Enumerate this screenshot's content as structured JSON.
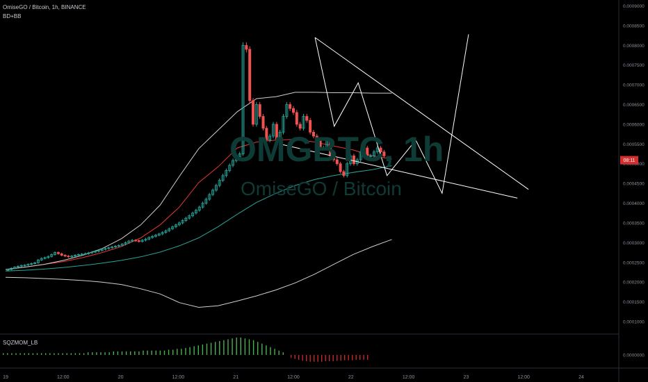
{
  "header": {
    "symbol_line": "OmiseGO / Bitcoin, 1h, BINANCE",
    "indicator_label": "BD+BB"
  },
  "watermark": {
    "ticker": "OMGBTC, 1h",
    "pair": "OmiseGO / Bitcoin"
  },
  "sub_pane": {
    "label": "SQZMOM_LB",
    "zero_label": "0.0000000"
  },
  "price_badge": "08:11",
  "colors": {
    "background": "#000000",
    "up_candle": "#26a69a",
    "down_candle": "#ef5350",
    "ema": "#e53935",
    "ma": "#26a69a",
    "bands": "#d0d0d0",
    "drawing": "#ffffff",
    "mom_pos": "#4caf50",
    "mom_neg": "#c62828",
    "badge": "#d32f2f"
  },
  "chart_data": {
    "type": "candlestick",
    "title": "OmiseGO / Bitcoin, 1h, BINANCE",
    "y_axis": {
      "ylim": [
        7e-05,
        0.000915
      ],
      "tick_labels": [
        "0.0009000",
        "0.0008500",
        "0.0008000",
        "0.0007500",
        "0.0007000",
        "0.0006500",
        "0.0006000",
        "0.0005500",
        "0.0005000",
        "0.0004500",
        "0.0004000",
        "0.0003500",
        "0.0003000",
        "0.0002500",
        "0.0002000",
        "0.0001500",
        "0.0001000"
      ],
      "tick_values": [
        0.0009,
        0.00085,
        0.0008,
        0.00075,
        0.0007,
        0.00065,
        0.0006,
        0.00055,
        0.0005,
        0.00045,
        0.0004,
        0.00035,
        0.0003,
        0.00025,
        0.0002,
        0.00015,
        0.0001
      ]
    },
    "x_axis": {
      "tick_labels": [
        "19",
        "12:00",
        "20",
        "12:00",
        "21",
        "12:00",
        "22",
        "12:00",
        "23",
        "12:00",
        "24"
      ],
      "tick_hours": [
        0,
        12,
        24,
        36,
        48,
        60,
        72,
        84,
        96,
        108,
        120
      ]
    },
    "candles_close": [
      0.000232,
      0.000235,
      0.000238,
      0.00024,
      0.000242,
      0.000243,
      0.000245,
      0.000247,
      0.000249,
      0.000256,
      0.00026,
      0.000262,
      0.000265,
      0.00027,
      0.000275,
      0.000272,
      0.000268,
      0.000266,
      0.000264,
      0.000266,
      0.000268,
      0.00027,
      0.000271,
      0.000272,
      0.000274,
      0.000276,
      0.000278,
      0.00028,
      0.000283,
      0.000285,
      0.000287,
      0.000289,
      0.000291,
      0.000293,
      0.000296,
      0.0003,
      0.000304,
      0.000306,
      0.000305,
      0.000303,
      0.000306,
      0.000309,
      0.000313,
      0.000316,
      0.000319,
      0.000322,
      0.000326,
      0.00033,
      0.000335,
      0.00034,
      0.000345,
      0.00035,
      0.000356,
      0.000362,
      0.000368,
      0.000375,
      0.000382,
      0.00039,
      0.0004,
      0.00041,
      0.000422,
      0.000433,
      0.000445,
      0.000458,
      0.00047,
      0.000483,
      0.000496,
      0.000508,
      0.000518,
      0.000525,
      0.0008,
      0.00079,
      0.00066,
      0.0006,
      0.00065,
      0.00062,
      0.00059,
      0.00056,
      0.00057,
      0.0006,
      0.00056,
      0.00058,
      0.00062,
      0.00065,
      0.00064,
      0.00063,
      0.0006,
      0.00059,
      0.00062,
      0.00061,
      0.00058,
      0.00057,
      0.00056,
      0.00054,
      0.00054,
      0.00056,
      0.00052,
      0.00051,
      0.0005,
      0.00048,
      0.00047,
      0.0005,
      0.00052,
      0.0005,
      0.00051,
      0.00053,
      0.00054,
      0.00052,
      0.00052,
      0.00053,
      0.00054,
      0.00053,
      0.00052
    ],
    "series": [
      {
        "name": "EMA",
        "values": [
          0.000232,
          0.000238,
          0.000245,
          0.000252,
          0.000262,
          0.000275,
          0.00029,
          0.000312,
          0.000345,
          0.00039,
          0.000452,
          0.000492,
          0.00054,
          0.000555,
          0.00056,
          0.000562,
          0.000555,
          0.000545,
          0.000535,
          0.00052,
          0.000512
        ]
      },
      {
        "name": "Upper Band",
        "values": [
          0.000232,
          0.000238,
          0.000245,
          0.000255,
          0.000268,
          0.000285,
          0.00031,
          0.000345,
          0.000395,
          0.000468,
          0.000538,
          0.000585,
          0.000632,
          0.000665,
          0.00067,
          0.000681,
          0.000681,
          0.00068,
          0.00068,
          0.000679,
          0.000679
        ]
      },
      {
        "name": "Basis",
        "values": [
          0.000228,
          0.00023,
          0.000233,
          0.000237,
          0.000242,
          0.000248,
          0.000255,
          0.000264,
          0.000276,
          0.000292,
          0.000312,
          0.00034,
          0.000372,
          0.000402,
          0.000425,
          0.000445,
          0.00046,
          0.00047,
          0.000478,
          0.000485,
          0.000495
        ]
      },
      {
        "name": "Lower Band",
        "values": [
          0.000212,
          0.000211,
          0.000209,
          0.000207,
          0.000204,
          0.0002,
          0.000194,
          0.000183,
          0.00017,
          0.000148,
          0.000136,
          0.00014,
          0.000152,
          0.000165,
          0.00018,
          0.000198,
          0.00022,
          0.000245,
          0.00027,
          0.00029,
          0.000308
        ]
      }
    ],
    "drawings": {
      "upper_trendline": [
        [
          64.5,
          0.00082
        ],
        [
          109.0,
          0.000435
        ]
      ],
      "lower_trendline": [
        [
          57.5,
          0.000549
        ],
        [
          106.7,
          0.000413
        ]
      ],
      "zigzag": [
        [
          64.5,
          0.00082
        ],
        [
          68.5,
          0.000595
        ],
        [
          73.5,
          0.000705
        ],
        [
          79.5,
          0.00047
        ],
        [
          85.5,
          0.00056
        ],
        [
          91.0,
          0.000425
        ],
        [
          96.5,
          0.000828
        ]
      ]
    },
    "squeeze_momentum": {
      "pos": [
        0.1,
        0.1,
        0.1,
        0.1,
        0.1,
        0.1,
        0.1,
        0.1,
        0.1,
        0.1,
        0.1,
        0.1,
        0.1,
        0.1,
        0.1,
        0.1,
        0.1,
        0.1,
        0.1,
        0.1,
        0.15,
        0.15,
        0.15,
        0.15,
        0.15,
        0.15,
        0.2,
        0.2,
        0.2,
        0.2,
        0.2,
        0.2,
        0.2,
        0.25,
        0.25,
        0.25,
        0.25,
        0.25,
        0.25,
        0.3,
        0.3,
        0.35,
        0.35,
        0.4,
        0.45,
        0.5,
        0.55,
        0.6,
        0.65,
        0.7,
        0.75,
        0.8,
        0.85,
        0.9,
        0.95,
        1.0,
        1.0,
        0.95,
        0.9,
        0.85,
        0.75,
        0.65,
        0.55,
        0.45,
        0.35,
        0.25,
        0.15
      ],
      "neg": [
        0.3,
        0.4,
        0.5,
        0.6,
        0.65,
        0.7,
        0.7,
        0.7,
        0.7,
        0.65,
        0.65,
        0.65,
        0.6,
        0.6,
        0.55,
        0.55,
        0.55,
        0.5,
        0.5,
        0.5,
        0.5
      ]
    }
  }
}
